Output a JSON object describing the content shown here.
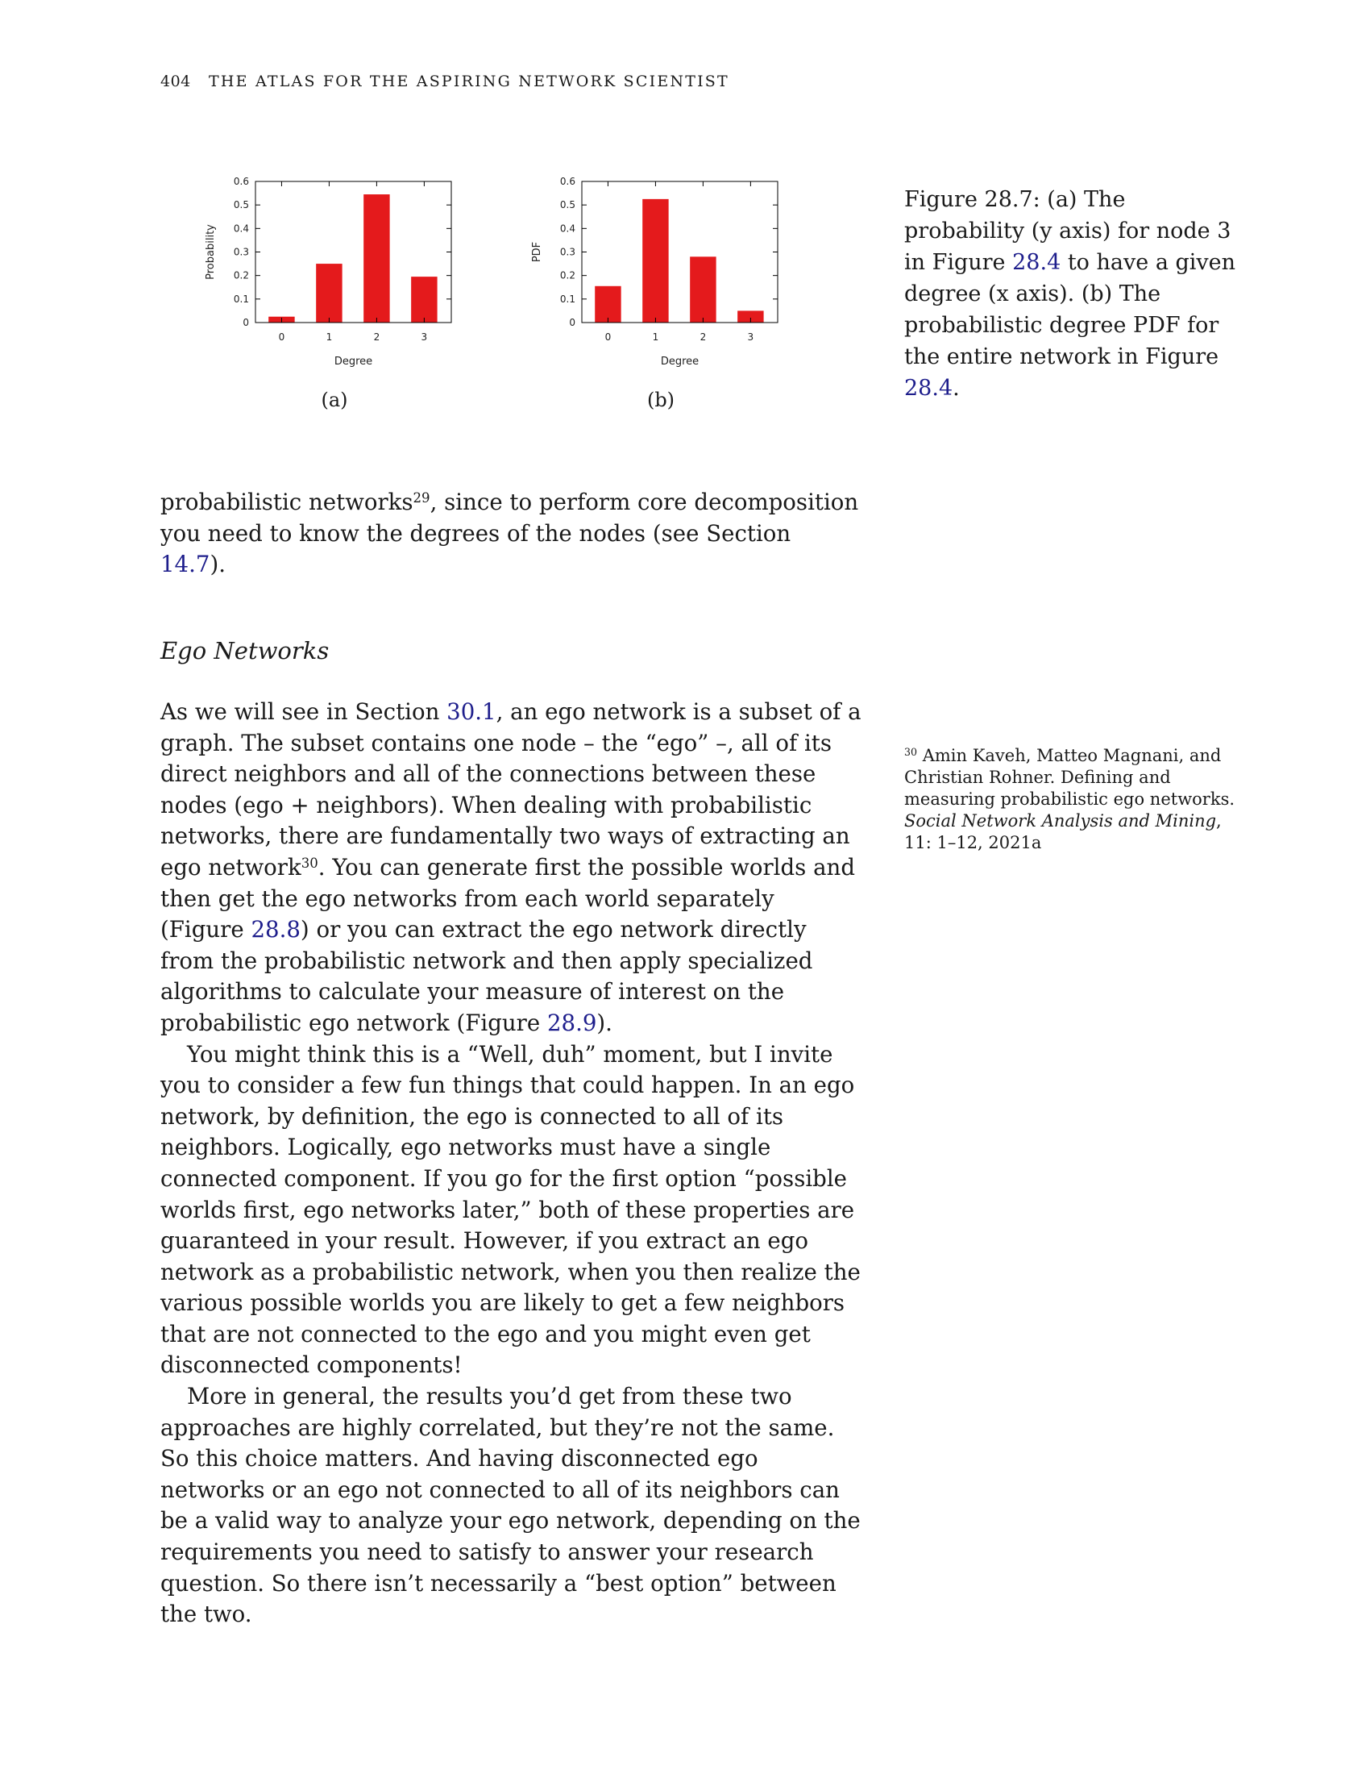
{
  "header": {
    "page_number": "404",
    "title": "THE ATLAS FOR THE ASPIRING NETWORK SCIENTIST"
  },
  "figure": {
    "subfig_a_label": "(a)",
    "subfig_b_label": "(b)",
    "caption": {
      "part1": "Figure 28.7: (a) The probability (y axis) for node 3 in Figure ",
      "ref1": "28.4",
      "part2": " to have a given degree (x axis). (b) The probabilistic degree PDF for the entire network in Figure ",
      "ref2": "28.4",
      "part3": "."
    }
  },
  "chart_data": [
    {
      "type": "bar",
      "categories": [
        "0",
        "1",
        "2",
        "3"
      ],
      "values": [
        0.025,
        0.25,
        0.545,
        0.195
      ],
      "xlabel": "Degree",
      "ylabel": "Probability",
      "ylim": [
        0,
        0.6
      ],
      "yticks": [
        "0",
        "0.1",
        "0.2",
        "0.3",
        "0.4",
        "0.5",
        "0.6"
      ],
      "color": "#e41a1c",
      "grid": false
    },
    {
      "type": "bar",
      "categories": [
        "0",
        "1",
        "2",
        "3"
      ],
      "values": [
        0.155,
        0.525,
        0.28,
        0.05
      ],
      "xlabel": "Degree",
      "ylabel": "PDF",
      "ylim": [
        0,
        0.6
      ],
      "yticks": [
        "0",
        "0.1",
        "0.2",
        "0.3",
        "0.4",
        "0.5",
        "0.6"
      ],
      "color": "#e41a1c",
      "grid": false
    }
  ],
  "text": {
    "cont_1": "probabilistic networks",
    "cont_fn": "29",
    "cont_2": ", since to perform core decomposition you need to know the degrees of the nodes (see Section ",
    "cont_ref": "14.7",
    "cont_3": ")."
  },
  "section": {
    "title": "Ego Networks"
  },
  "para1": {
    "a": "As we will see in Section ",
    "ref_a": "30.1",
    "b": ", an ego network is a subset of a graph. The subset contains one node – the “ego” –, all of its direct neighbors and all of the connections between these nodes (ego + neighbors). When dealing with probabilistic networks, there are fundamentally two ways of extracting an ego network",
    "fn": "30",
    "c": ". You can generate first the possible worlds and then get the ego networks from each world separately (Figure ",
    "ref_b": "28.8",
    "d": ") or you can extract the ego network directly from the probabilistic network and then apply specialized algorithms to calculate your measure of interest on the probabilistic ego network (Figure ",
    "ref_c": "28.9",
    "e": ")."
  },
  "para2": "You might think this is a “Well, duh” moment, but I invite you to consider a few fun things that could happen. In an ego network, by definition, the ego is connected to all of its neighbors. Logically, ego networks must have a single connected component. If you go for the first option “possible worlds first, ego networks later,” both of these properties are guaranteed in your result. However, if you extract an ego network as a probabilistic network, when you then realize the various possible worlds you are likely to get a few neighbors that are not connected to the ego and you might even get disconnected components!",
  "para3": "More in general, the results you’d get from these two approaches are highly correlated, but they’re not the same. So this choice matters. And having disconnected ego networks or an ego not connected to all of its neighbors can be a valid way to analyze your ego network, depending on the requirements you need to satisfy to answer your research question. So there isn’t necessarily a “best option” between the two.",
  "sidenote": {
    "num": "30",
    "authors": " Amin Kaveh, Matteo Magnani, and Christian Rohner. Defining and measuring probabilistic ego networks. ",
    "journal": "Social Network Analysis and Mining",
    "rest": ", 11: 1–12, 2021a"
  }
}
